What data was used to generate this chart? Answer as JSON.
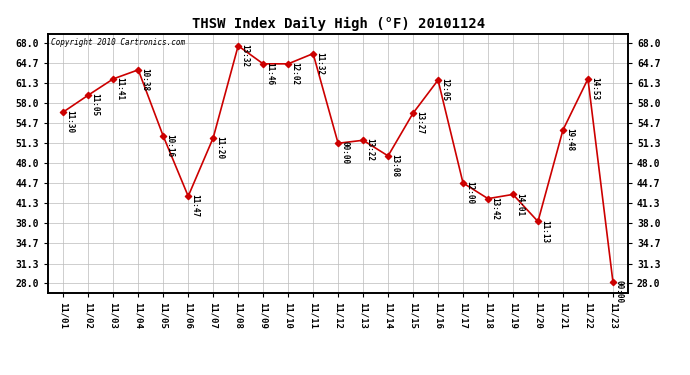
{
  "title": "THSW Index Daily High (°F) 20101124",
  "copyright": "Copyright 2010 Cartronics.com",
  "background_color": "#ffffff",
  "line_color": "#cc0000",
  "marker_color": "#cc0000",
  "grid_color": "#bbbbbb",
  "yticks": [
    28.0,
    31.3,
    34.7,
    38.0,
    41.3,
    44.7,
    48.0,
    51.3,
    54.7,
    58.0,
    61.3,
    64.7,
    68.0
  ],
  "ylim": [
    26.5,
    69.5
  ],
  "data": [
    {
      "date": "2010-11-01",
      "value": 56.5,
      "time": "11:30"
    },
    {
      "date": "2010-11-02",
      "value": 59.3,
      "time": "11:05"
    },
    {
      "date": "2010-11-03",
      "value": 62.0,
      "time": "11:41"
    },
    {
      "date": "2010-11-04",
      "value": 63.5,
      "time": "10:38"
    },
    {
      "date": "2010-11-05",
      "value": 52.5,
      "time": "10:16"
    },
    {
      "date": "2010-11-06",
      "value": 42.5,
      "time": "11:47"
    },
    {
      "date": "2010-11-07",
      "value": 52.2,
      "time": "11:20"
    },
    {
      "date": "2010-11-08",
      "value": 67.5,
      "time": "13:32"
    },
    {
      "date": "2010-11-09",
      "value": 64.5,
      "time": "11:46"
    },
    {
      "date": "2010-11-10",
      "value": 64.5,
      "time": "12:02"
    },
    {
      "date": "2010-11-11",
      "value": 66.2,
      "time": "11:32"
    },
    {
      "date": "2010-11-12",
      "value": 51.3,
      "time": "00:00"
    },
    {
      "date": "2010-11-13",
      "value": 51.8,
      "time": "13:22"
    },
    {
      "date": "2010-11-14",
      "value": 49.2,
      "time": "13:08"
    },
    {
      "date": "2010-11-15",
      "value": 56.3,
      "time": "13:27"
    },
    {
      "date": "2010-11-16",
      "value": 61.8,
      "time": "12:05"
    },
    {
      "date": "2010-11-17",
      "value": 44.7,
      "time": "12:00"
    },
    {
      "date": "2010-11-18",
      "value": 42.1,
      "time": "13:42"
    },
    {
      "date": "2010-11-19",
      "value": 42.8,
      "time": "14:01"
    },
    {
      "date": "2010-11-20",
      "value": 38.3,
      "time": "11:13"
    },
    {
      "date": "2010-11-21",
      "value": 53.5,
      "time": "19:48"
    },
    {
      "date": "2010-11-22",
      "value": 62.0,
      "time": "14:53"
    },
    {
      "date": "2010-11-23",
      "value": 28.3,
      "time": "00:00"
    }
  ],
  "xlabels": [
    "11/01",
    "11/02",
    "11/03",
    "11/04",
    "11/05",
    "11/06",
    "11/07",
    "11/08",
    "11/09",
    "11/10",
    "11/11",
    "11/12",
    "11/13",
    "11/14",
    "11/15",
    "11/16",
    "11/17",
    "11/18",
    "11/19",
    "11/20",
    "11/21",
    "11/22",
    "11/23"
  ]
}
